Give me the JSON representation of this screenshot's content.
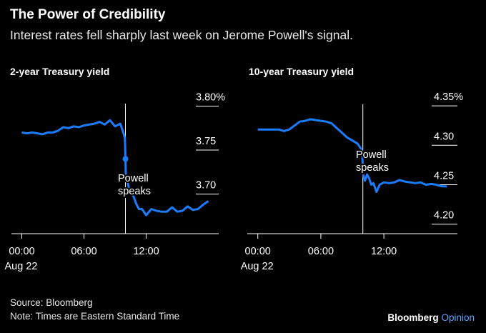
{
  "title": "The Power of Credibility",
  "subtitle": "Interest rates fell sharply last week on Jerome Powell's signal.",
  "source": "Source: Bloomberg",
  "note": "Note: Times are Eastern Standard Time",
  "brand": {
    "name": "Bloomberg",
    "suffix": "Opinion"
  },
  "colors": {
    "line": "#1a7cff",
    "background": "#000000",
    "text": "#ffffff"
  },
  "chart_data": [
    {
      "type": "line",
      "title": "2-year Treasury yield",
      "x_ticks": [
        "00:00",
        "06:00",
        "12:00"
      ],
      "x_tick_hours": [
        0,
        6,
        12
      ],
      "x_sublabel": "Aug 22",
      "y_ticks": [
        "3.80%",
        "3.75",
        "3.70"
      ],
      "y_tick_values": [
        3.8,
        3.75,
        3.7
      ],
      "ylim": [
        3.655,
        3.815
      ],
      "xlim": [
        -1,
        19
      ],
      "annotation": {
        "label_line1": "Powell",
        "label_line2": "speaks",
        "hour": 10
      },
      "series": [
        {
          "x": [
            0,
            0.5,
            1,
            1.5,
            2,
            2.5,
            3,
            3.5,
            4,
            4.5,
            5,
            5.5,
            6,
            6.5,
            7,
            7.5,
            8,
            8.5,
            9,
            9.5,
            9.85,
            9.95,
            10,
            10.05,
            10.2,
            10.4,
            10.6,
            10.8,
            11,
            11.3,
            11.6,
            12,
            12.5,
            13,
            13.5,
            14,
            14.5,
            15,
            15.5,
            16,
            16.5,
            17,
            17.5,
            18
          ],
          "y": [
            3.77,
            3.769,
            3.77,
            3.769,
            3.768,
            3.77,
            3.77,
            3.772,
            3.776,
            3.775,
            3.777,
            3.776,
            3.778,
            3.779,
            3.78,
            3.782,
            3.779,
            3.784,
            3.777,
            3.78,
            3.768,
            3.763,
            3.74,
            3.718,
            3.714,
            3.703,
            3.7,
            3.697,
            3.69,
            3.683,
            3.683,
            3.676,
            3.683,
            3.681,
            3.68,
            3.68,
            3.685,
            3.68,
            3.681,
            3.686,
            3.682,
            3.683,
            3.688,
            3.692
          ]
        }
      ]
    },
    {
      "type": "line",
      "title": "10-year Treasury yield",
      "x_ticks": [
        "00:00",
        "06:00",
        "12:00"
      ],
      "x_tick_hours": [
        0,
        6,
        12
      ],
      "x_sublabel": "Aug 22",
      "y_ticks": [
        "4.35%",
        "4.30",
        "4.25",
        "4.20"
      ],
      "y_tick_values": [
        4.35,
        4.3,
        4.25,
        4.2
      ],
      "ylim": [
        4.188,
        4.37
      ],
      "xlim": [
        -1,
        19
      ],
      "annotation": {
        "label_line1": "Powell",
        "label_line2": "speaks",
        "hour": 10
      },
      "series": [
        {
          "x": [
            0,
            0.5,
            1,
            1.5,
            2,
            2.5,
            3,
            3.5,
            4,
            4.5,
            5,
            5.5,
            6,
            6.5,
            7,
            7.5,
            8,
            8.5,
            9,
            9.5,
            9.85,
            9.95,
            10,
            10.05,
            10.2,
            10.4,
            10.6,
            10.8,
            11,
            11.3,
            11.6,
            12,
            12.5,
            13,
            13.5,
            14,
            14.5,
            15,
            15.5,
            16,
            16.5,
            17,
            17.5,
            18
          ],
          "y": [
            4.32,
            4.32,
            4.32,
            4.32,
            4.32,
            4.318,
            4.32,
            4.325,
            4.33,
            4.331,
            4.333,
            4.332,
            4.331,
            4.33,
            4.328,
            4.322,
            4.316,
            4.31,
            4.306,
            4.302,
            4.295,
            4.285,
            4.27,
            4.262,
            4.255,
            4.263,
            4.258,
            4.25,
            4.252,
            4.241,
            4.25,
            4.253,
            4.252,
            4.253,
            4.256,
            4.254,
            4.253,
            4.252,
            4.253,
            4.25,
            4.251,
            4.25,
            4.248,
            4.248
          ]
        }
      ]
    }
  ]
}
